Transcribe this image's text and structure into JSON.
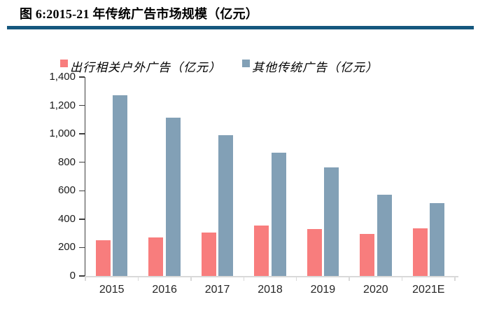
{
  "header": {
    "title": "图 6:2015-21 年传统广告市场规模（亿元）"
  },
  "chart_data": {
    "type": "bar",
    "title": "图 6:2015-21 年传统广告市场规模（亿元）",
    "categories": [
      "2015",
      "2016",
      "2017",
      "2018",
      "2019",
      "2020",
      "2021E"
    ],
    "series": [
      {
        "name": "出行相关户外广告（亿元）",
        "color": "#F87D7D",
        "values": [
          250,
          270,
          305,
          355,
          330,
          295,
          335
        ]
      },
      {
        "name": "其他传统广告（亿元）",
        "color": "#82A0B6",
        "values": [
          1270,
          1115,
          990,
          870,
          765,
          570,
          515
        ]
      }
    ],
    "xlabel": "",
    "ylabel": "",
    "ylim": [
      0,
      1400
    ],
    "ytick_step": 200,
    "ytick_labels": [
      "0",
      "200",
      "400",
      "600",
      "800",
      "1,000",
      "1,200",
      "1,400"
    ],
    "legend_position": "top",
    "grid": false
  },
  "colors": {
    "title_rule": "#15577E",
    "y_axis": "#3f3f3f",
    "x_axis": "#D9D9D9",
    "background": "#ffffff"
  }
}
